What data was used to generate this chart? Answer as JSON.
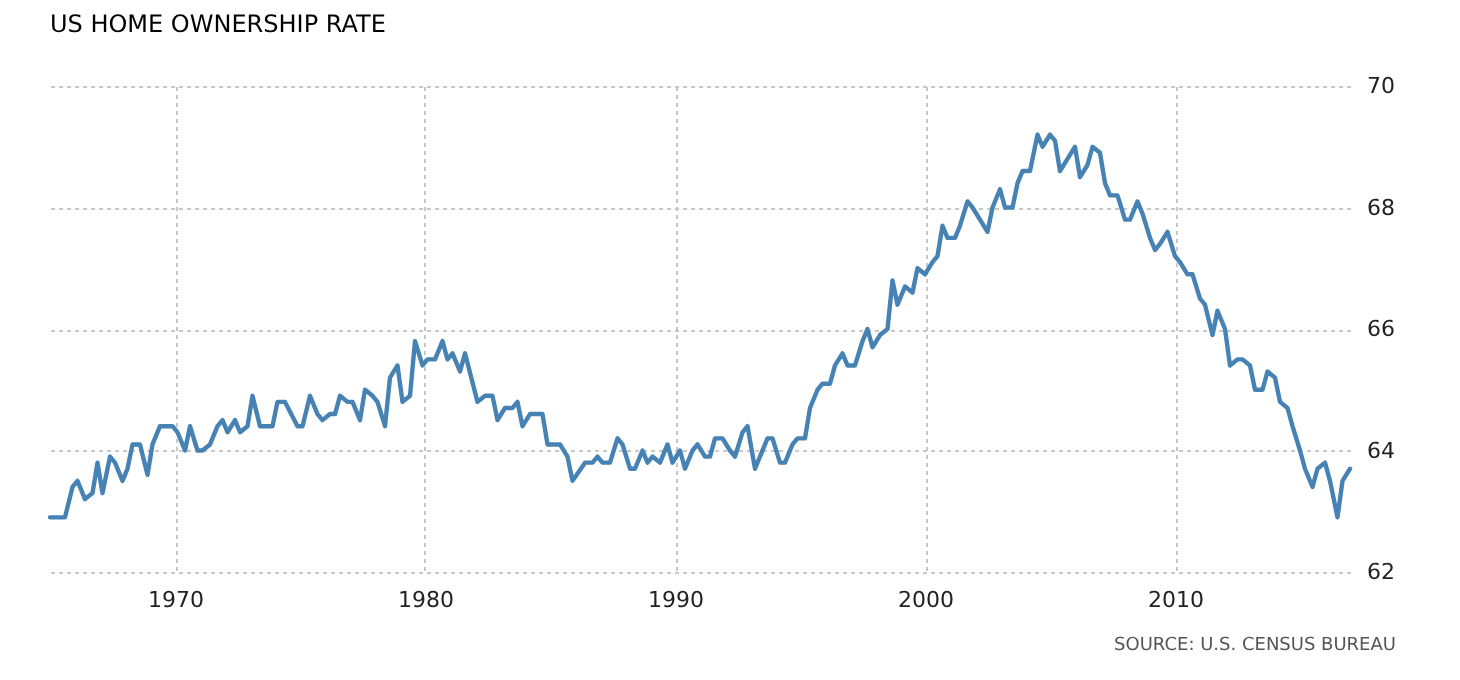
{
  "chart_data": {
    "type": "line",
    "title": "US HOME OWNERSHIP RATE",
    "annotations": [
      "SOURCE: U.S. CENSUS BUREAU"
    ],
    "x": [
      1965.0,
      1965.6,
      1965.9,
      1966.1,
      1966.4,
      1966.7,
      1966.9,
      1967.1,
      1967.4,
      1967.6,
      1967.9,
      1968.1,
      1968.3,
      1968.6,
      1968.9,
      1969.1,
      1969.4,
      1969.9,
      1970.1,
      1970.4,
      1970.6,
      1970.9,
      1971.1,
      1971.4,
      1971.7,
      1971.9,
      1972.1,
      1972.4,
      1972.6,
      1972.9,
      1973.1,
      1973.4,
      1973.9,
      1974.1,
      1974.4,
      1974.9,
      1975.1,
      1975.4,
      1975.7,
      1975.9,
      1976.2,
      1976.4,
      1976.6,
      1976.9,
      1977.1,
      1977.4,
      1977.6,
      1977.9,
      1978.1,
      1978.4,
      1978.6,
      1978.9,
      1979.1,
      1979.4,
      1979.6,
      1979.9,
      1980.1,
      1980.4,
      1980.7,
      1980.9,
      1981.1,
      1981.4,
      1981.6,
      1982.1,
      1982.4,
      1982.7,
      1982.9,
      1983.2,
      1983.5,
      1983.7,
      1983.9,
      1984.2,
      1984.7,
      1984.9,
      1985.4,
      1985.7,
      1985.9,
      1986.4,
      1986.7,
      1986.9,
      1987.1,
      1987.4,
      1987.7,
      1987.9,
      1988.2,
      1988.4,
      1988.7,
      1988.9,
      1989.1,
      1989.4,
      1989.7,
      1989.9,
      1990.2,
      1990.4,
      1990.7,
      1990.9,
      1991.2,
      1991.4,
      1991.6,
      1991.9,
      1992.2,
      1992.4,
      1992.7,
      1992.9,
      1993.2,
      1993.4,
      1993.7,
      1993.9,
      1994.2,
      1994.4,
      1994.7,
      1994.9,
      1995.2,
      1995.4,
      1995.7,
      1995.9,
      1996.2,
      1996.4,
      1996.7,
      1996.9,
      1997.2,
      1997.5,
      1997.7,
      1997.9,
      1998.2,
      1998.5,
      1998.7,
      1998.9,
      1999.2,
      1999.5,
      1999.7,
      2000.0,
      2000.3,
      2000.5,
      2000.7,
      2000.9,
      2001.2,
      2001.4,
      2001.7,
      2001.9,
      2002.2,
      2002.5,
      2002.7,
      2003.0,
      2003.2,
      2003.5,
      2003.7,
      2003.9,
      2004.2,
      2004.5,
      2004.7,
      2005.0,
      2005.2,
      2005.4,
      2005.7,
      2006.0,
      2006.2,
      2006.5,
      2006.7,
      2007.0,
      2007.2,
      2007.4,
      2007.7,
      2008.0,
      2008.2,
      2008.5,
      2008.7,
      2009.0,
      2009.2,
      2009.4,
      2009.7,
      2010.0,
      2010.2,
      2010.5,
      2010.7,
      2011.0,
      2011.2,
      2011.5,
      2011.7,
      2012.0,
      2012.2,
      2012.5,
      2012.7,
      2013.0,
      2013.2,
      2013.5,
      2013.7,
      2014.0,
      2014.2,
      2014.5,
      2014.7,
      2015.0,
      2015.2,
      2015.5,
      2015.7,
      2016.0,
      2016.2,
      2016.5,
      2016.7,
      2017.0
    ],
    "series": [
      {
        "color": "#4682b4",
        "values": [
          62.9,
          62.9,
          63.4,
          63.5,
          63.2,
          63.3,
          63.8,
          63.3,
          63.9,
          63.8,
          63.5,
          63.7,
          64.1,
          64.1,
          63.6,
          64.1,
          64.4,
          64.4,
          64.3,
          64.0,
          64.4,
          64.0,
          64.0,
          64.1,
          64.4,
          64.5,
          64.3,
          64.5,
          64.3,
          64.4,
          64.9,
          64.4,
          64.4,
          64.8,
          64.8,
          64.4,
          64.4,
          64.9,
          64.6,
          64.5,
          64.6,
          64.6,
          64.9,
          64.8,
          64.8,
          64.5,
          65.0,
          64.9,
          64.8,
          64.4,
          65.2,
          65.4,
          64.8,
          64.9,
          65.8,
          65.4,
          65.5,
          65.5,
          65.8,
          65.5,
          65.6,
          65.3,
          65.6,
          64.8,
          64.9,
          64.9,
          64.5,
          64.7,
          64.7,
          64.8,
          64.4,
          64.6,
          64.6,
          64.1,
          64.1,
          63.9,
          63.5,
          63.8,
          63.8,
          63.9,
          63.8,
          63.8,
          64.2,
          64.1,
          63.7,
          63.7,
          64.0,
          63.8,
          63.9,
          63.8,
          64.1,
          63.8,
          64.0,
          63.7,
          64.0,
          64.1,
          63.9,
          63.9,
          64.2,
          64.2,
          64.0,
          63.9,
          64.3,
          64.4,
          63.7,
          63.9,
          64.2,
          64.2,
          63.8,
          63.8,
          64.1,
          64.2,
          64.2,
          64.7,
          65.0,
          65.1,
          65.1,
          65.4,
          65.6,
          65.4,
          65.4,
          65.8,
          66.0,
          65.7,
          65.9,
          66.0,
          66.8,
          66.4,
          66.7,
          66.6,
          67.0,
          66.9,
          67.1,
          67.2,
          67.7,
          67.5,
          67.5,
          67.7,
          68.1,
          68.0,
          67.8,
          67.6,
          68.0,
          68.3,
          68.0,
          68.0,
          68.4,
          68.6,
          68.6,
          69.2,
          69.0,
          69.2,
          69.1,
          68.6,
          68.8,
          69.0,
          68.5,
          68.7,
          69.0,
          68.9,
          68.4,
          68.2,
          68.2,
          67.8,
          67.8,
          68.1,
          67.9,
          67.5,
          67.3,
          67.4,
          67.6,
          67.2,
          67.1,
          66.9,
          66.9,
          66.5,
          66.4,
          65.9,
          66.3,
          66.0,
          65.4,
          65.5,
          65.5,
          65.4,
          65.0,
          65.0,
          65.3,
          65.2,
          64.8,
          64.7,
          64.4,
          64.0,
          63.7,
          63.4,
          63.7,
          63.8,
          63.5,
          62.9,
          63.5,
          63.7
        ]
      }
    ],
    "xlim": [
      1965,
      2017
    ],
    "xticks": [
      1970,
      1980,
      1990,
      2000,
      2010
    ],
    "ylim": [
      62,
      70
    ],
    "yticks": [
      62,
      64,
      66,
      68,
      70
    ],
    "grid": true,
    "legend": false,
    "marker": "none",
    "line_style": "solid"
  }
}
